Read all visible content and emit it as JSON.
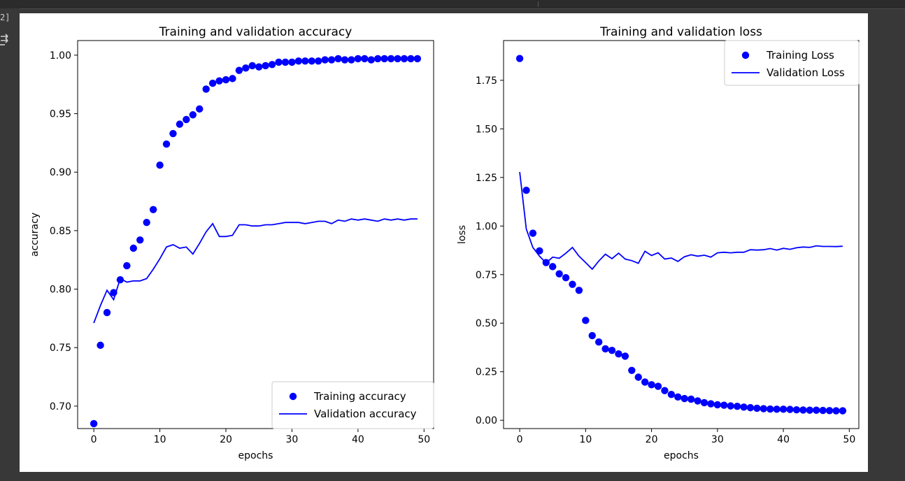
{
  "cell": {
    "exec_count": "2]"
  },
  "icons": {
    "output": "output-toggle-icon"
  },
  "colors": {
    "series": "#0000ff"
  },
  "chart_data": [
    {
      "type": "line",
      "title": "Training and validation accuracy",
      "xlabel": "epochs",
      "ylabel": "accuracy",
      "xlim": [
        -2.45,
        51.45
      ],
      "ylim": [
        0.6808,
        1.0125
      ],
      "xticks": [
        0,
        10,
        20,
        30,
        40,
        50
      ],
      "yticks": [
        0.7,
        0.75,
        0.8,
        0.85,
        0.9,
        0.95,
        1.0
      ],
      "ytick_labels": [
        "0.70",
        "0.75",
        "0.80",
        "0.85",
        "0.90",
        "0.95",
        "1.00"
      ],
      "legend_position": "lower-right",
      "series": [
        {
          "name": "Training accuracy",
          "style": "markers",
          "x": [
            0,
            1,
            2,
            3,
            4,
            5,
            6,
            7,
            8,
            9,
            10,
            11,
            12,
            13,
            14,
            15,
            16,
            17,
            18,
            19,
            20,
            21,
            22,
            23,
            24,
            25,
            26,
            27,
            28,
            29,
            30,
            31,
            32,
            33,
            34,
            35,
            36,
            37,
            38,
            39,
            40,
            41,
            42,
            43,
            44,
            45,
            46,
            47,
            48,
            49
          ],
          "values": [
            0.685,
            0.752,
            0.78,
            0.797,
            0.808,
            0.82,
            0.835,
            0.842,
            0.857,
            0.868,
            0.906,
            0.924,
            0.933,
            0.941,
            0.945,
            0.949,
            0.954,
            0.971,
            0.976,
            0.978,
            0.979,
            0.98,
            0.987,
            0.989,
            0.991,
            0.99,
            0.991,
            0.992,
            0.994,
            0.994,
            0.994,
            0.995,
            0.995,
            0.995,
            0.995,
            0.996,
            0.996,
            0.997,
            0.996,
            0.996,
            0.997,
            0.997,
            0.996,
            0.997,
            0.997,
            0.997,
            0.997,
            0.997,
            0.997,
            0.997
          ]
        },
        {
          "name": "Validation accuracy",
          "style": "line",
          "x": [
            0,
            1,
            2,
            3,
            4,
            5,
            6,
            7,
            8,
            9,
            10,
            11,
            12,
            13,
            14,
            15,
            16,
            17,
            18,
            19,
            20,
            21,
            22,
            23,
            24,
            25,
            26,
            27,
            28,
            29,
            30,
            31,
            32,
            33,
            34,
            35,
            36,
            37,
            38,
            39,
            40,
            41,
            42,
            43,
            44,
            45,
            46,
            47,
            48,
            49
          ],
          "values": [
            0.771,
            0.786,
            0.799,
            0.791,
            0.809,
            0.806,
            0.807,
            0.807,
            0.809,
            0.817,
            0.826,
            0.836,
            0.838,
            0.835,
            0.836,
            0.83,
            0.839,
            0.849,
            0.856,
            0.845,
            0.845,
            0.846,
            0.855,
            0.855,
            0.854,
            0.854,
            0.855,
            0.855,
            0.856,
            0.857,
            0.857,
            0.857,
            0.856,
            0.857,
            0.858,
            0.858,
            0.856,
            0.859,
            0.858,
            0.86,
            0.859,
            0.86,
            0.859,
            0.858,
            0.86,
            0.859,
            0.86,
            0.859,
            0.86,
            0.86
          ]
        }
      ]
    },
    {
      "type": "line",
      "title": "Training and validation loss",
      "xlabel": "epochs",
      "ylabel": "loss",
      "xlim": [
        -2.45,
        51.45
      ],
      "ylim": [
        -0.0425,
        1.9546
      ],
      "xticks": [
        0,
        10,
        20,
        30,
        40,
        50
      ],
      "yticks": [
        0.0,
        0.25,
        0.5,
        0.75,
        1.0,
        1.25,
        1.5,
        1.75
      ],
      "ytick_labels": [
        "0.00",
        "0.25",
        "0.50",
        "0.75",
        "1.00",
        "1.25",
        "1.50",
        "1.75"
      ],
      "legend_position": "top-right",
      "series": [
        {
          "name": "Training Loss",
          "style": "markers",
          "x": [
            0,
            1,
            2,
            3,
            4,
            5,
            6,
            7,
            8,
            9,
            10,
            11,
            12,
            13,
            14,
            15,
            16,
            17,
            18,
            19,
            20,
            21,
            22,
            23,
            24,
            25,
            26,
            27,
            28,
            29,
            30,
            31,
            32,
            33,
            34,
            35,
            36,
            37,
            38,
            39,
            40,
            41,
            42,
            43,
            44,
            45,
            46,
            47,
            48,
            49
          ],
          "values": [
            1.862,
            1.184,
            0.963,
            0.872,
            0.812,
            0.791,
            0.754,
            0.734,
            0.7,
            0.669,
            0.514,
            0.436,
            0.403,
            0.368,
            0.36,
            0.342,
            0.33,
            0.257,
            0.222,
            0.197,
            0.183,
            0.175,
            0.153,
            0.133,
            0.12,
            0.112,
            0.109,
            0.1,
            0.091,
            0.085,
            0.08,
            0.078,
            0.074,
            0.072,
            0.068,
            0.065,
            0.062,
            0.06,
            0.058,
            0.057,
            0.057,
            0.056,
            0.054,
            0.053,
            0.052,
            0.052,
            0.051,
            0.05,
            0.049,
            0.049
          ]
        },
        {
          "name": "Validation Loss",
          "style": "line",
          "x": [
            0,
            1,
            2,
            3,
            4,
            5,
            6,
            7,
            8,
            9,
            10,
            11,
            12,
            13,
            14,
            15,
            16,
            17,
            18,
            19,
            20,
            21,
            22,
            23,
            24,
            25,
            26,
            27,
            28,
            29,
            30,
            31,
            32,
            33,
            34,
            35,
            36,
            37,
            38,
            39,
            40,
            41,
            42,
            43,
            44,
            45,
            46,
            47,
            48,
            49
          ],
          "values": [
            1.278,
            0.985,
            0.89,
            0.845,
            0.81,
            0.84,
            0.834,
            0.86,
            0.89,
            0.845,
            0.812,
            0.778,
            0.82,
            0.855,
            0.832,
            0.86,
            0.83,
            0.822,
            0.808,
            0.87,
            0.848,
            0.862,
            0.83,
            0.835,
            0.818,
            0.842,
            0.852,
            0.845,
            0.85,
            0.84,
            0.862,
            0.865,
            0.862,
            0.865,
            0.865,
            0.878,
            0.876,
            0.878,
            0.884,
            0.876,
            0.885,
            0.88,
            0.888,
            0.892,
            0.89,
            0.898,
            0.895,
            0.895,
            0.894,
            0.896
          ]
        }
      ]
    }
  ]
}
